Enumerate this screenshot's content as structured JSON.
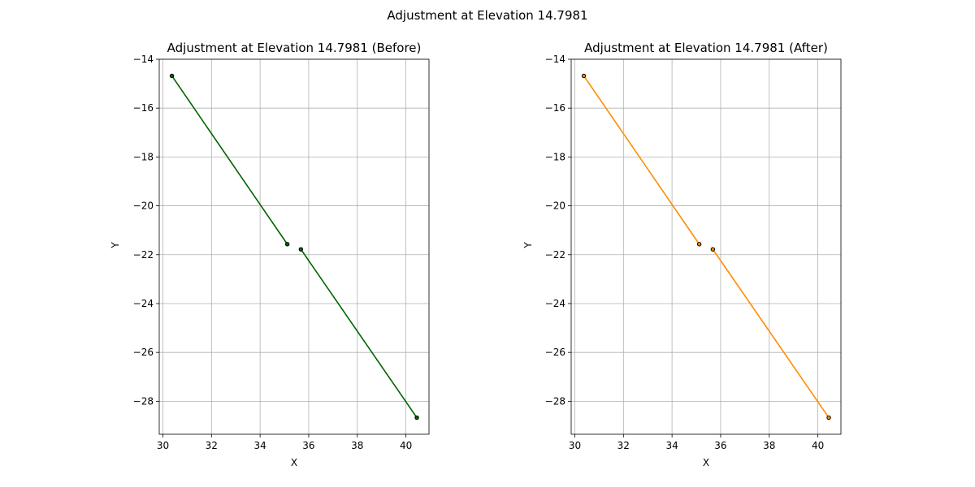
{
  "suptitle": "Adjustment at Elevation 14.7981",
  "chart_data": [
    {
      "type": "line",
      "title": "Adjustment at Elevation 14.7981 (Before)",
      "xlabel": "X",
      "ylabel": "Y",
      "xlim": [
        29.85,
        40.95
      ],
      "ylim": [
        -29.35,
        -14.0
      ],
      "xticks": [
        30,
        32,
        34,
        36,
        38,
        40
      ],
      "yticks": [
        -14,
        -16,
        -18,
        -20,
        -22,
        -24,
        -26,
        -28
      ],
      "grid": true,
      "line_color": "#006400",
      "segments": [
        [
          [
            30.37,
            -14.68
          ],
          [
            35.12,
            -21.57
          ]
        ],
        [
          [
            35.68,
            -21.78
          ],
          [
            40.45,
            -28.67
          ]
        ]
      ],
      "points": [
        [
          30.37,
          -14.68
        ],
        [
          35.12,
          -21.57
        ],
        [
          35.68,
          -21.78
        ],
        [
          40.45,
          -28.67
        ]
      ],
      "point_color": "#006400"
    },
    {
      "type": "line",
      "title": "Adjustment at Elevation 14.7981 (After)",
      "xlabel": "X",
      "ylabel": "Y",
      "xlim": [
        29.85,
        40.95
      ],
      "ylim": [
        -29.35,
        -14.0
      ],
      "xticks": [
        30,
        32,
        34,
        36,
        38,
        40
      ],
      "yticks": [
        -14,
        -16,
        -18,
        -20,
        -22,
        -24,
        -26,
        -28
      ],
      "grid": true,
      "line_color": "#ff8c00",
      "segments": [
        [
          [
            30.37,
            -14.68
          ],
          [
            35.12,
            -21.57
          ]
        ],
        [
          [
            35.68,
            -21.78
          ],
          [
            40.45,
            -28.67
          ]
        ]
      ],
      "points": [
        [
          30.37,
          -14.68
        ],
        [
          35.12,
          -21.57
        ],
        [
          35.68,
          -21.78
        ],
        [
          40.45,
          -28.67
        ]
      ],
      "point_color": "#ff8c00"
    }
  ]
}
